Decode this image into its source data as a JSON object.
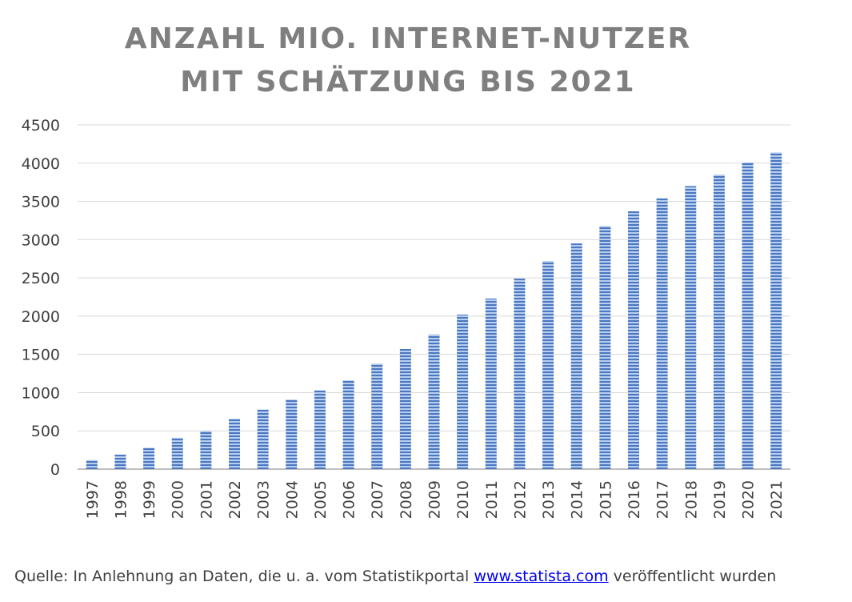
{
  "title_line1": "ANZAHL MIO. INTERNET-NUTZER",
  "title_line2": "MIT SCHÄTZUNG BIS 2021",
  "source": {
    "prefix": "Quelle: In Anlehnung an Daten, die u. a. vom Statistikportal",
    "link": "www.statista.com",
    "suffix": "veröffentlicht wurden"
  },
  "colors": {
    "bar": "#4a78c2",
    "bar_light": "#b9cdec",
    "title": "#7f7f7f",
    "grid": "#d9d9d9",
    "axis": "#bfbfbf",
    "text": "#404040",
    "link": "#0000ee"
  },
  "chart_data": {
    "type": "bar",
    "title": "ANZAHL MIO. INTERNET-NUTZER MIT SCHÄTZUNG BIS 2021",
    "categories": [
      "1997",
      "1998",
      "1999",
      "2000",
      "2001",
      "2002",
      "2003",
      "2004",
      "2005",
      "2006",
      "2007",
      "2008",
      "2009",
      "2010",
      "2011",
      "2012",
      "2013",
      "2014",
      "2015",
      "2016",
      "2017",
      "2018",
      "2019",
      "2020",
      "2021"
    ],
    "values": [
      120,
      190,
      280,
      410,
      500,
      660,
      780,
      910,
      1030,
      1160,
      1380,
      1570,
      1760,
      2020,
      2230,
      2490,
      2720,
      2950,
      3180,
      3370,
      3540,
      3700,
      3850,
      4010,
      4140
    ],
    "ylim": [
      0,
      4500
    ],
    "yticks": [
      0,
      500,
      1000,
      1500,
      2000,
      2500,
      3000,
      3500,
      4000,
      4500
    ],
    "grid": true,
    "legend": "none",
    "xlabel": "",
    "ylabel": ""
  }
}
